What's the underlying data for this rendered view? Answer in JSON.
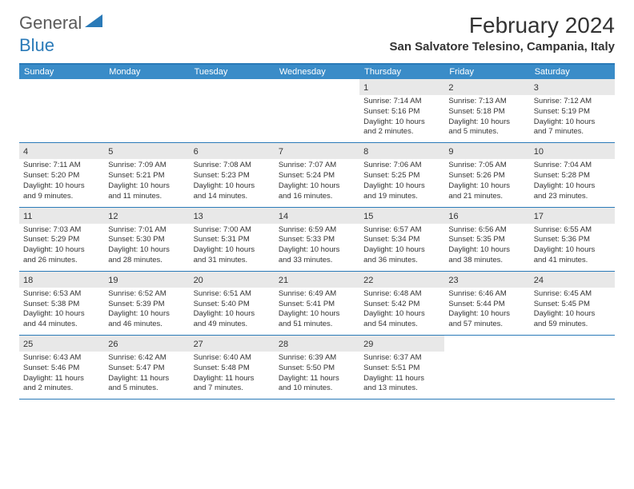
{
  "logo": {
    "text1": "General",
    "text2": "Blue"
  },
  "title": "February 2024",
  "location": "San Salvatore Telesino, Campania, Italy",
  "colors": {
    "header_bg": "#3a8cc8",
    "border": "#2a7ab8",
    "daynum_bg": "#e8e8e8",
    "text": "#333333",
    "white": "#ffffff"
  },
  "weekdays": [
    "Sunday",
    "Monday",
    "Tuesday",
    "Wednesday",
    "Thursday",
    "Friday",
    "Saturday"
  ],
  "weeks": [
    [
      null,
      null,
      null,
      null,
      {
        "n": "1",
        "sr": "Sunrise: 7:14 AM",
        "ss": "Sunset: 5:16 PM",
        "d1": "Daylight: 10 hours",
        "d2": "and 2 minutes."
      },
      {
        "n": "2",
        "sr": "Sunrise: 7:13 AM",
        "ss": "Sunset: 5:18 PM",
        "d1": "Daylight: 10 hours",
        "d2": "and 5 minutes."
      },
      {
        "n": "3",
        "sr": "Sunrise: 7:12 AM",
        "ss": "Sunset: 5:19 PM",
        "d1": "Daylight: 10 hours",
        "d2": "and 7 minutes."
      }
    ],
    [
      {
        "n": "4",
        "sr": "Sunrise: 7:11 AM",
        "ss": "Sunset: 5:20 PM",
        "d1": "Daylight: 10 hours",
        "d2": "and 9 minutes."
      },
      {
        "n": "5",
        "sr": "Sunrise: 7:09 AM",
        "ss": "Sunset: 5:21 PM",
        "d1": "Daylight: 10 hours",
        "d2": "and 11 minutes."
      },
      {
        "n": "6",
        "sr": "Sunrise: 7:08 AM",
        "ss": "Sunset: 5:23 PM",
        "d1": "Daylight: 10 hours",
        "d2": "and 14 minutes."
      },
      {
        "n": "7",
        "sr": "Sunrise: 7:07 AM",
        "ss": "Sunset: 5:24 PM",
        "d1": "Daylight: 10 hours",
        "d2": "and 16 minutes."
      },
      {
        "n": "8",
        "sr": "Sunrise: 7:06 AM",
        "ss": "Sunset: 5:25 PM",
        "d1": "Daylight: 10 hours",
        "d2": "and 19 minutes."
      },
      {
        "n": "9",
        "sr": "Sunrise: 7:05 AM",
        "ss": "Sunset: 5:26 PM",
        "d1": "Daylight: 10 hours",
        "d2": "and 21 minutes."
      },
      {
        "n": "10",
        "sr": "Sunrise: 7:04 AM",
        "ss": "Sunset: 5:28 PM",
        "d1": "Daylight: 10 hours",
        "d2": "and 23 minutes."
      }
    ],
    [
      {
        "n": "11",
        "sr": "Sunrise: 7:03 AM",
        "ss": "Sunset: 5:29 PM",
        "d1": "Daylight: 10 hours",
        "d2": "and 26 minutes."
      },
      {
        "n": "12",
        "sr": "Sunrise: 7:01 AM",
        "ss": "Sunset: 5:30 PM",
        "d1": "Daylight: 10 hours",
        "d2": "and 28 minutes."
      },
      {
        "n": "13",
        "sr": "Sunrise: 7:00 AM",
        "ss": "Sunset: 5:31 PM",
        "d1": "Daylight: 10 hours",
        "d2": "and 31 minutes."
      },
      {
        "n": "14",
        "sr": "Sunrise: 6:59 AM",
        "ss": "Sunset: 5:33 PM",
        "d1": "Daylight: 10 hours",
        "d2": "and 33 minutes."
      },
      {
        "n": "15",
        "sr": "Sunrise: 6:57 AM",
        "ss": "Sunset: 5:34 PM",
        "d1": "Daylight: 10 hours",
        "d2": "and 36 minutes."
      },
      {
        "n": "16",
        "sr": "Sunrise: 6:56 AM",
        "ss": "Sunset: 5:35 PM",
        "d1": "Daylight: 10 hours",
        "d2": "and 38 minutes."
      },
      {
        "n": "17",
        "sr": "Sunrise: 6:55 AM",
        "ss": "Sunset: 5:36 PM",
        "d1": "Daylight: 10 hours",
        "d2": "and 41 minutes."
      }
    ],
    [
      {
        "n": "18",
        "sr": "Sunrise: 6:53 AM",
        "ss": "Sunset: 5:38 PM",
        "d1": "Daylight: 10 hours",
        "d2": "and 44 minutes."
      },
      {
        "n": "19",
        "sr": "Sunrise: 6:52 AM",
        "ss": "Sunset: 5:39 PM",
        "d1": "Daylight: 10 hours",
        "d2": "and 46 minutes."
      },
      {
        "n": "20",
        "sr": "Sunrise: 6:51 AM",
        "ss": "Sunset: 5:40 PM",
        "d1": "Daylight: 10 hours",
        "d2": "and 49 minutes."
      },
      {
        "n": "21",
        "sr": "Sunrise: 6:49 AM",
        "ss": "Sunset: 5:41 PM",
        "d1": "Daylight: 10 hours",
        "d2": "and 51 minutes."
      },
      {
        "n": "22",
        "sr": "Sunrise: 6:48 AM",
        "ss": "Sunset: 5:42 PM",
        "d1": "Daylight: 10 hours",
        "d2": "and 54 minutes."
      },
      {
        "n": "23",
        "sr": "Sunrise: 6:46 AM",
        "ss": "Sunset: 5:44 PM",
        "d1": "Daylight: 10 hours",
        "d2": "and 57 minutes."
      },
      {
        "n": "24",
        "sr": "Sunrise: 6:45 AM",
        "ss": "Sunset: 5:45 PM",
        "d1": "Daylight: 10 hours",
        "d2": "and 59 minutes."
      }
    ],
    [
      {
        "n": "25",
        "sr": "Sunrise: 6:43 AM",
        "ss": "Sunset: 5:46 PM",
        "d1": "Daylight: 11 hours",
        "d2": "and 2 minutes."
      },
      {
        "n": "26",
        "sr": "Sunrise: 6:42 AM",
        "ss": "Sunset: 5:47 PM",
        "d1": "Daylight: 11 hours",
        "d2": "and 5 minutes."
      },
      {
        "n": "27",
        "sr": "Sunrise: 6:40 AM",
        "ss": "Sunset: 5:48 PM",
        "d1": "Daylight: 11 hours",
        "d2": "and 7 minutes."
      },
      {
        "n": "28",
        "sr": "Sunrise: 6:39 AM",
        "ss": "Sunset: 5:50 PM",
        "d1": "Daylight: 11 hours",
        "d2": "and 10 minutes."
      },
      {
        "n": "29",
        "sr": "Sunrise: 6:37 AM",
        "ss": "Sunset: 5:51 PM",
        "d1": "Daylight: 11 hours",
        "d2": "and 13 minutes."
      },
      null,
      null
    ]
  ]
}
